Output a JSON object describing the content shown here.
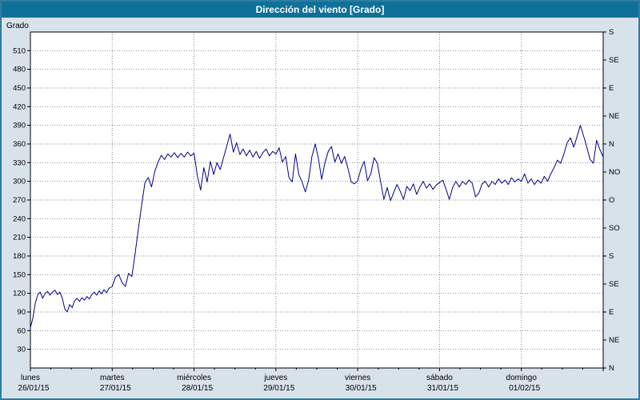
{
  "window": {
    "title": "Dirección del viento [Grado]"
  },
  "colors": {
    "titlebar_bg": "#0f7199",
    "titlebar_text": "#ffffff",
    "frame_border": "#2e7ca2",
    "chart_bg": "#d8e2ea",
    "plot_bg": "#ffffff",
    "grid": "#8a8a8a",
    "axis": "#000000",
    "line": "#00008b"
  },
  "chart_data": {
    "type": "line",
    "title": "Dirección del viento [Grado]",
    "ylabel": "Grado",
    "ylim": [
      0,
      540
    ],
    "xlim": [
      0,
      7
    ],
    "grid": "dotted",
    "y_ticks_left": [
      30,
      60,
      90,
      120,
      150,
      180,
      210,
      240,
      270,
      300,
      330,
      360,
      390,
      420,
      450,
      480,
      510
    ],
    "y_ticks_right": [
      {
        "label": "S",
        "value": 540
      },
      {
        "label": "SE",
        "value": 495
      },
      {
        "label": "E",
        "value": 450
      },
      {
        "label": "NE",
        "value": 405
      },
      {
        "label": "N",
        "value": 360
      },
      {
        "label": "NO",
        "value": 315
      },
      {
        "label": "O",
        "value": 270
      },
      {
        "label": "SO",
        "value": 225
      },
      {
        "label": "S",
        "value": 180
      },
      {
        "label": "SE",
        "value": 135
      },
      {
        "label": "E",
        "value": 90
      },
      {
        "label": "NE",
        "value": 45
      },
      {
        "label": "N",
        "value": 0
      }
    ],
    "days": [
      {
        "name": "lunes",
        "date": "26/01/15",
        "x": 0
      },
      {
        "name": "martes",
        "date": "27/01/15",
        "x": 1
      },
      {
        "name": "miércoles",
        "date": "28/01/15",
        "x": 2
      },
      {
        "name": "jueves",
        "date": "29/01/15",
        "x": 3
      },
      {
        "name": "viernes",
        "date": "30/01/15",
        "x": 4
      },
      {
        "name": "sábado",
        "date": "31/01/15",
        "x": 5
      },
      {
        "name": "domingo",
        "date": "01/02/15",
        "x": 6
      }
    ],
    "series": [
      {
        "name": "Dirección del viento",
        "color": "#00008b",
        "points": [
          [
            0.0,
            65
          ],
          [
            0.03,
            80
          ],
          [
            0.06,
            104
          ],
          [
            0.09,
            118
          ],
          [
            0.12,
            122
          ],
          [
            0.15,
            112
          ],
          [
            0.18,
            120
          ],
          [
            0.21,
            123
          ],
          [
            0.24,
            117
          ],
          [
            0.27,
            122
          ],
          [
            0.3,
            125
          ],
          [
            0.33,
            118
          ],
          [
            0.36,
            122
          ],
          [
            0.39,
            112
          ],
          [
            0.42,
            95
          ],
          [
            0.45,
            90
          ],
          [
            0.48,
            102
          ],
          [
            0.51,
            97
          ],
          [
            0.54,
            108
          ],
          [
            0.57,
            112
          ],
          [
            0.6,
            107
          ],
          [
            0.63,
            113
          ],
          [
            0.66,
            109
          ],
          [
            0.69,
            115
          ],
          [
            0.72,
            111
          ],
          [
            0.75,
            118
          ],
          [
            0.78,
            122
          ],
          [
            0.81,
            117
          ],
          [
            0.84,
            124
          ],
          [
            0.87,
            119
          ],
          [
            0.9,
            126
          ],
          [
            0.93,
            121
          ],
          [
            0.96,
            128
          ],
          [
            1.0,
            131
          ],
          [
            1.04,
            146
          ],
          [
            1.08,
            150
          ],
          [
            1.12,
            137
          ],
          [
            1.16,
            131
          ],
          [
            1.2,
            152
          ],
          [
            1.24,
            147
          ],
          [
            1.28,
            184
          ],
          [
            1.32,
            224
          ],
          [
            1.36,
            262
          ],
          [
            1.4,
            298
          ],
          [
            1.44,
            306
          ],
          [
            1.48,
            291
          ],
          [
            1.52,
            316
          ],
          [
            1.56,
            331
          ],
          [
            1.6,
            342
          ],
          [
            1.64,
            335
          ],
          [
            1.68,
            344
          ],
          [
            1.72,
            339
          ],
          [
            1.76,
            346
          ],
          [
            1.8,
            338
          ],
          [
            1.84,
            345
          ],
          [
            1.88,
            339
          ],
          [
            1.92,
            347
          ],
          [
            1.96,
            341
          ],
          [
            2.0,
            345
          ],
          [
            2.04,
            309
          ],
          [
            2.08,
            286
          ],
          [
            2.12,
            322
          ],
          [
            2.16,
            299
          ],
          [
            2.2,
            332
          ],
          [
            2.24,
            311
          ],
          [
            2.28,
            330
          ],
          [
            2.32,
            319
          ],
          [
            2.36,
            338
          ],
          [
            2.4,
            357
          ],
          [
            2.44,
            376
          ],
          [
            2.48,
            347
          ],
          [
            2.52,
            362
          ],
          [
            2.56,
            343
          ],
          [
            2.6,
            352
          ],
          [
            2.64,
            341
          ],
          [
            2.68,
            350
          ],
          [
            2.72,
            339
          ],
          [
            2.76,
            348
          ],
          [
            2.8,
            337
          ],
          [
            2.84,
            346
          ],
          [
            2.88,
            352
          ],
          [
            2.92,
            341
          ],
          [
            2.96,
            348
          ],
          [
            3.0,
            344
          ],
          [
            3.04,
            354
          ],
          [
            3.08,
            331
          ],
          [
            3.12,
            340
          ],
          [
            3.16,
            306
          ],
          [
            3.2,
            299
          ],
          [
            3.24,
            344
          ],
          [
            3.28,
            311
          ],
          [
            3.32,
            299
          ],
          [
            3.36,
            283
          ],
          [
            3.4,
            302
          ],
          [
            3.44,
            340
          ],
          [
            3.48,
            360
          ],
          [
            3.52,
            337
          ],
          [
            3.56,
            303
          ],
          [
            3.6,
            330
          ],
          [
            3.64,
            348
          ],
          [
            3.68,
            356
          ],
          [
            3.72,
            331
          ],
          [
            3.76,
            344
          ],
          [
            3.8,
            329
          ],
          [
            3.84,
            340
          ],
          [
            3.88,
            321
          ],
          [
            3.92,
            299
          ],
          [
            3.96,
            296
          ],
          [
            4.0,
            301
          ],
          [
            4.04,
            320
          ],
          [
            4.08,
            332
          ],
          [
            4.12,
            301
          ],
          [
            4.16,
            312
          ],
          [
            4.2,
            338
          ],
          [
            4.24,
            329
          ],
          [
            4.28,
            299
          ],
          [
            4.32,
            271
          ],
          [
            4.36,
            290
          ],
          [
            4.4,
            269
          ],
          [
            4.44,
            282
          ],
          [
            4.48,
            295
          ],
          [
            4.52,
            284
          ],
          [
            4.56,
            271
          ],
          [
            4.6,
            292
          ],
          [
            4.64,
            285
          ],
          [
            4.68,
            296
          ],
          [
            4.72,
            279
          ],
          [
            4.76,
            291
          ],
          [
            4.8,
            300
          ],
          [
            4.84,
            289
          ],
          [
            4.88,
            296
          ],
          [
            4.92,
            287
          ],
          [
            4.96,
            294
          ],
          [
            5.0,
            298
          ],
          [
            5.04,
            302
          ],
          [
            5.08,
            287
          ],
          [
            5.12,
            271
          ],
          [
            5.16,
            290
          ],
          [
            5.2,
            300
          ],
          [
            5.24,
            291
          ],
          [
            5.28,
            300
          ],
          [
            5.32,
            295
          ],
          [
            5.36,
            302
          ],
          [
            5.4,
            297
          ],
          [
            5.44,
            275
          ],
          [
            5.48,
            281
          ],
          [
            5.52,
            296
          ],
          [
            5.56,
            300
          ],
          [
            5.6,
            291
          ],
          [
            5.64,
            300
          ],
          [
            5.68,
            295
          ],
          [
            5.72,
            304
          ],
          [
            5.76,
            297
          ],
          [
            5.8,
            302
          ],
          [
            5.84,
            295
          ],
          [
            5.88,
            306
          ],
          [
            5.92,
            299
          ],
          [
            5.96,
            304
          ],
          [
            6.0,
            300
          ],
          [
            6.04,
            312
          ],
          [
            6.08,
            297
          ],
          [
            6.12,
            304
          ],
          [
            6.16,
            295
          ],
          [
            6.2,
            302
          ],
          [
            6.24,
            297
          ],
          [
            6.28,
            308
          ],
          [
            6.32,
            300
          ],
          [
            6.36,
            312
          ],
          [
            6.4,
            322
          ],
          [
            6.44,
            334
          ],
          [
            6.48,
            329
          ],
          [
            6.52,
            344
          ],
          [
            6.56,
            362
          ],
          [
            6.6,
            370
          ],
          [
            6.64,
            355
          ],
          [
            6.68,
            372
          ],
          [
            6.72,
            390
          ],
          [
            6.76,
            373
          ],
          [
            6.8,
            355
          ],
          [
            6.84,
            335
          ],
          [
            6.88,
            329
          ],
          [
            6.92,
            366
          ],
          [
            6.96,
            351
          ],
          [
            7.0,
            339
          ]
        ]
      }
    ]
  }
}
